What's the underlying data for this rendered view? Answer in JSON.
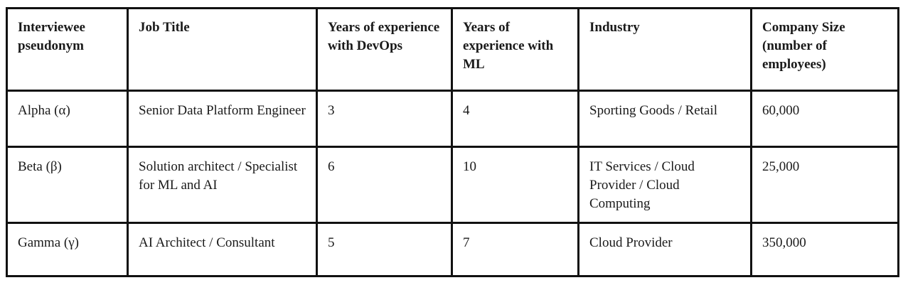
{
  "table": {
    "headers": [
      "Interviewee pseudonym",
      "Job Title",
      "Years of experience with DevOps",
      "Years of experience with ML",
      "Industry",
      "Company Size (number of employees)"
    ],
    "rows": [
      [
        "Alpha (α)",
        "Senior Data Platform Engineer",
        "3",
        "4",
        "Sporting Goods / Retail",
        "60,000"
      ],
      [
        "Beta (β)",
        "Solution architect / Specialist for ML and AI",
        "6",
        "10",
        "IT Services / Cloud Provider / Cloud Computing",
        "25,000"
      ],
      [
        "Gamma (γ)",
        "AI Architect / Consultant",
        "5",
        "7",
        "Cloud Provider",
        "350,000"
      ]
    ]
  }
}
